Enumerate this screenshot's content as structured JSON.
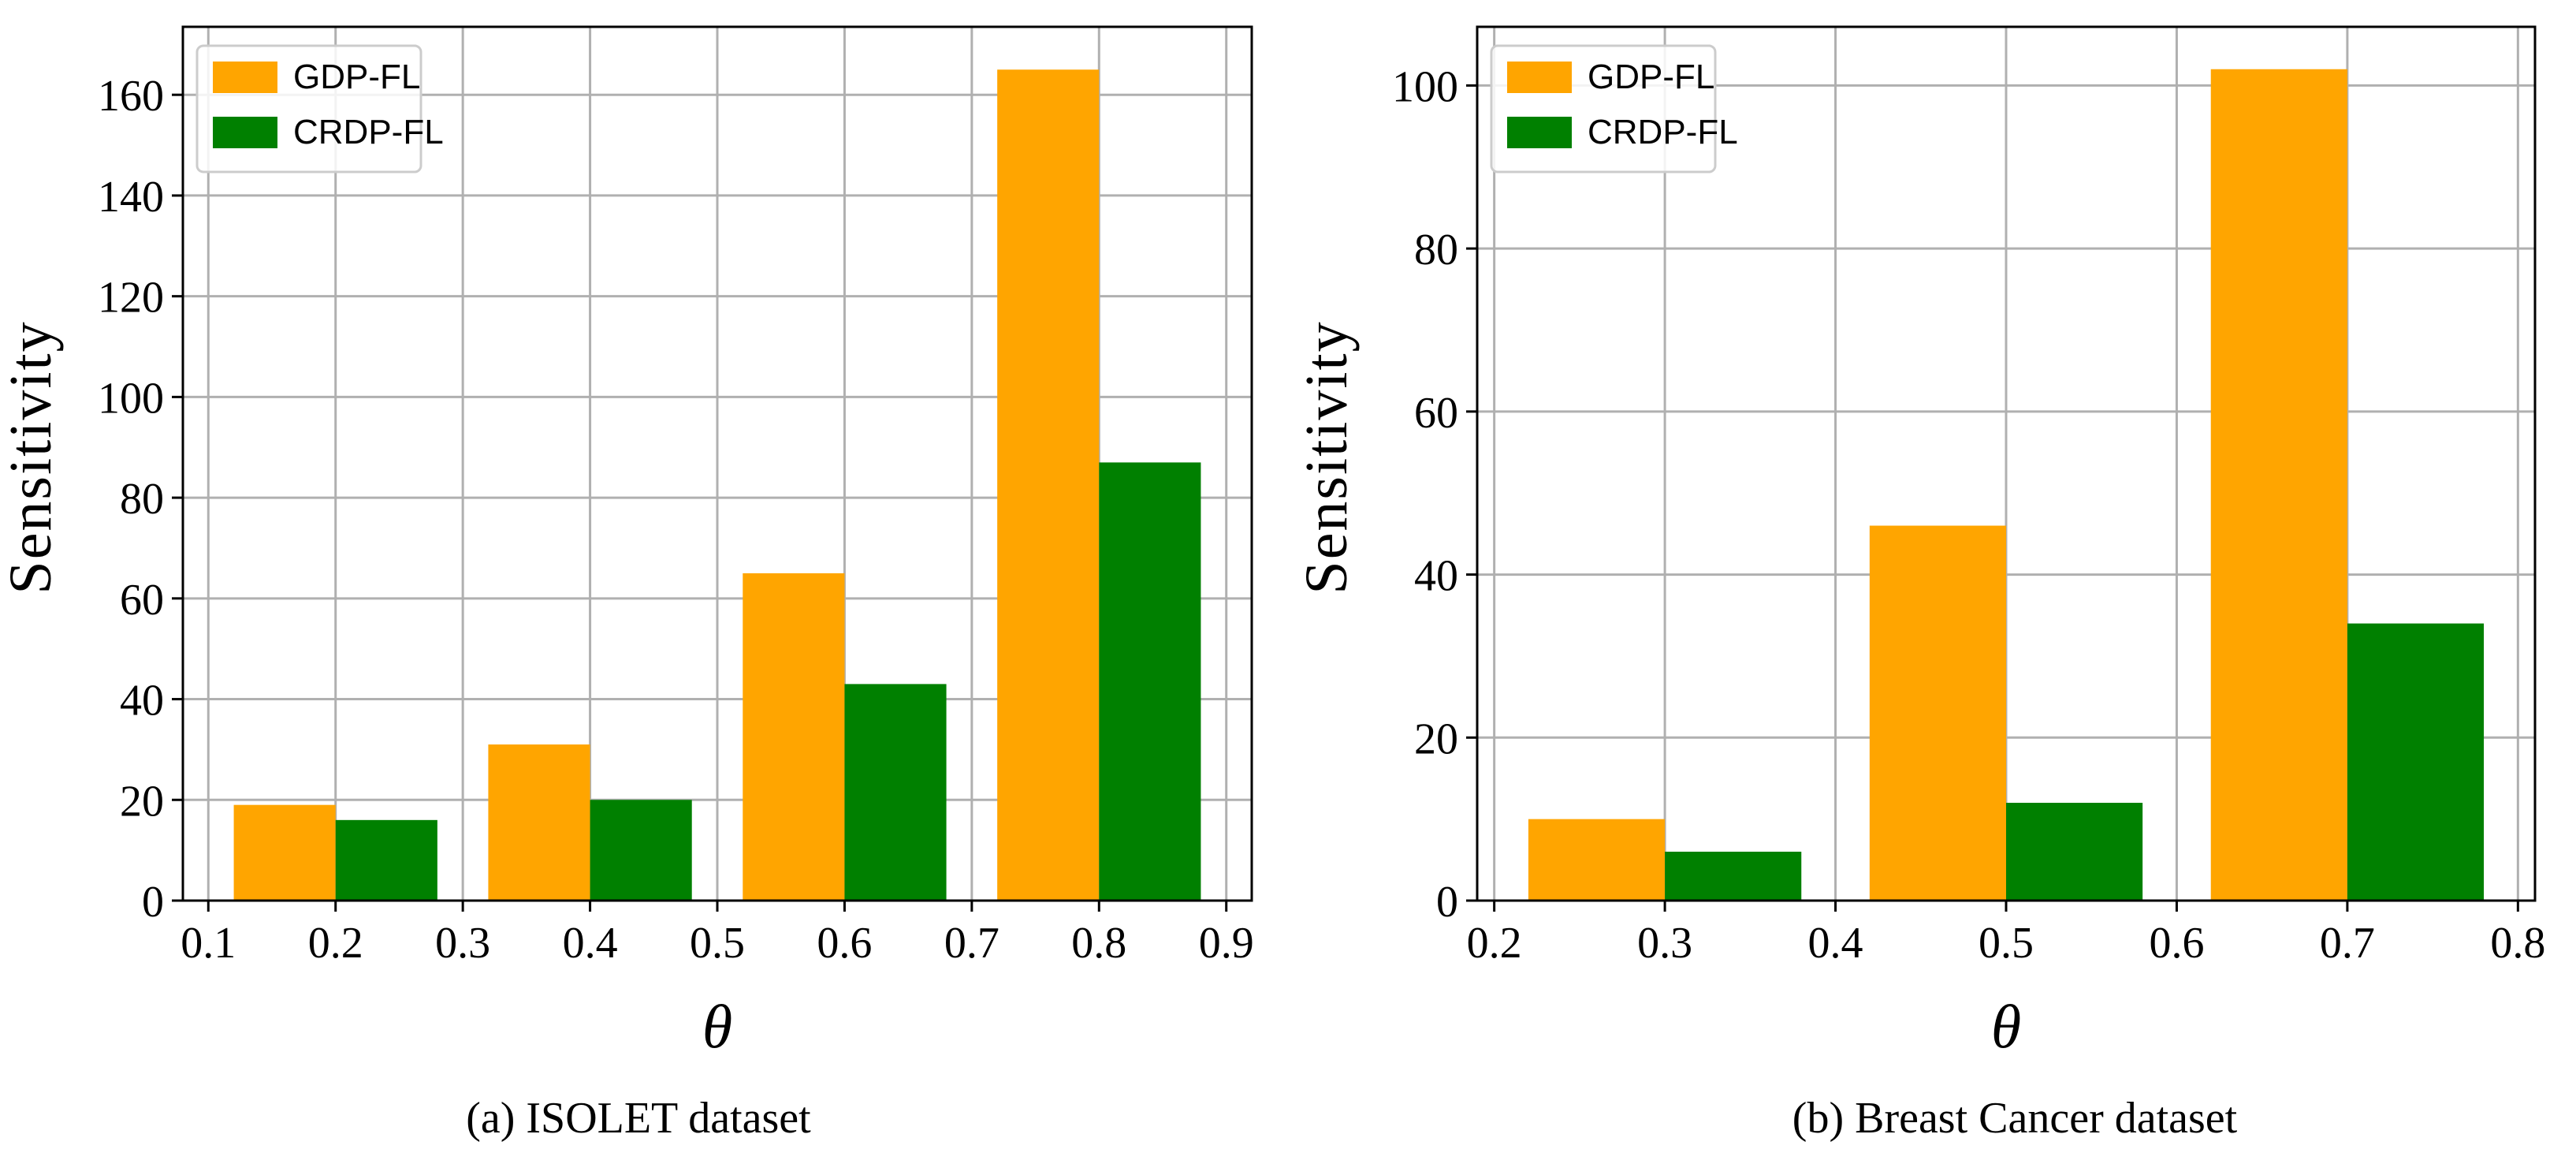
{
  "chart_data": [
    {
      "type": "bar",
      "categories": [
        "0.2",
        "0.4",
        "0.6",
        "0.8"
      ],
      "x": [
        0.2,
        0.4,
        0.6,
        0.8
      ],
      "bar_width": 0.08,
      "series": [
        {
          "name": "GDP-FL",
          "color": "#FFA500",
          "values": [
            19,
            31,
            65,
            165
          ]
        },
        {
          "name": "CRDP-FL",
          "color": "#008000",
          "values": [
            16,
            20,
            43,
            87
          ]
        }
      ],
      "xlabel": "θ",
      "ylabel": "Sensitivity",
      "xlim": [
        0.08,
        0.92
      ],
      "ylim": [
        0,
        173.5
      ],
      "xticks": [
        0.1,
        0.2,
        0.3,
        0.4,
        0.5,
        0.6,
        0.7,
        0.8,
        0.9
      ],
      "xtick_labels": [
        "0.1",
        "0.2",
        "0.3",
        "0.4",
        "0.5",
        "0.6",
        "0.7",
        "0.8",
        "0.9"
      ],
      "yticks": [
        0,
        20,
        40,
        60,
        80,
        100,
        120,
        140,
        160
      ],
      "ytick_labels": [
        "0",
        "20",
        "40",
        "60",
        "80",
        "100",
        "120",
        "140",
        "160"
      ],
      "grid": true,
      "legend_position": "top-left",
      "caption": "(a)  ISOLET dataset"
    },
    {
      "type": "bar",
      "categories": [
        "0.3",
        "0.5",
        "0.7"
      ],
      "x": [
        0.3,
        0.5,
        0.7
      ],
      "bar_width": 0.08,
      "series": [
        {
          "name": "GDP-FL",
          "color": "#FFA500",
          "values": [
            10,
            46,
            102
          ]
        },
        {
          "name": "CRDP-FL",
          "color": "#008000",
          "values": [
            6,
            12,
            34
          ]
        }
      ],
      "xlabel": "θ",
      "ylabel": "Sensitivity",
      "xlim": [
        0.19,
        0.81
      ],
      "ylim": [
        0,
        107.2
      ],
      "xticks": [
        0.2,
        0.3,
        0.4,
        0.5,
        0.6,
        0.7,
        0.8
      ],
      "xtick_labels": [
        "0.2",
        "0.3",
        "0.4",
        "0.5",
        "0.6",
        "0.7",
        "0.8"
      ],
      "yticks": [
        0,
        20,
        40,
        60,
        80,
        100
      ],
      "ytick_labels": [
        "0",
        "20",
        "40",
        "60",
        "80",
        "100"
      ],
      "grid": true,
      "legend_position": "top-left",
      "caption": "(b)  Breast Cancer dataset"
    }
  ]
}
